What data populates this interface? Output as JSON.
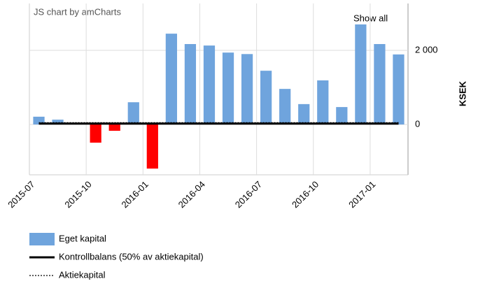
{
  "chart_data": {
    "type": "bar",
    "credit": "JS chart by amCharts",
    "button": "Show all",
    "y_axis_label": "KSEK",
    "categories": [
      "2015-07",
      null,
      null,
      "2015-10",
      null,
      null,
      "2016-01",
      null,
      null,
      "2016-04",
      null,
      null,
      "2016-07",
      null,
      null,
      "2016-10",
      null,
      null,
      "2017-01",
      null
    ],
    "series": [
      {
        "name": "Eget kapital",
        "type": "bar",
        "color": "#6fa4dd",
        "negative_color": "#ff0000",
        "values": [
          210,
          130,
          20,
          -490,
          -170,
          600,
          -1190,
          2450,
          2170,
          2130,
          1940,
          1900,
          1450,
          960,
          550,
          1190,
          470,
          2700,
          2170,
          1890
        ]
      },
      {
        "name": "Kontrollbalans (50% av aktiekapital)",
        "type": "line",
        "color": "#000000",
        "dash": "solid",
        "values": [
          25,
          25,
          25,
          25,
          25,
          25,
          25,
          25,
          25,
          25,
          25,
          25,
          25,
          25,
          25,
          25,
          25,
          25,
          25,
          25
        ]
      },
      {
        "name": "Aktiekapital",
        "type": "line",
        "color": "#000000",
        "dash": "dotted",
        "values": [
          50,
          50,
          50,
          50,
          50,
          50,
          50,
          50,
          50,
          50,
          50,
          50,
          50,
          50,
          50,
          50,
          50,
          50,
          50,
          50
        ]
      }
    ],
    "ylim": [
      -1358,
      3264
    ],
    "yticks": [
      0,
      {
        "value": 2000,
        "label": "2 000"
      }
    ],
    "grid": true
  }
}
